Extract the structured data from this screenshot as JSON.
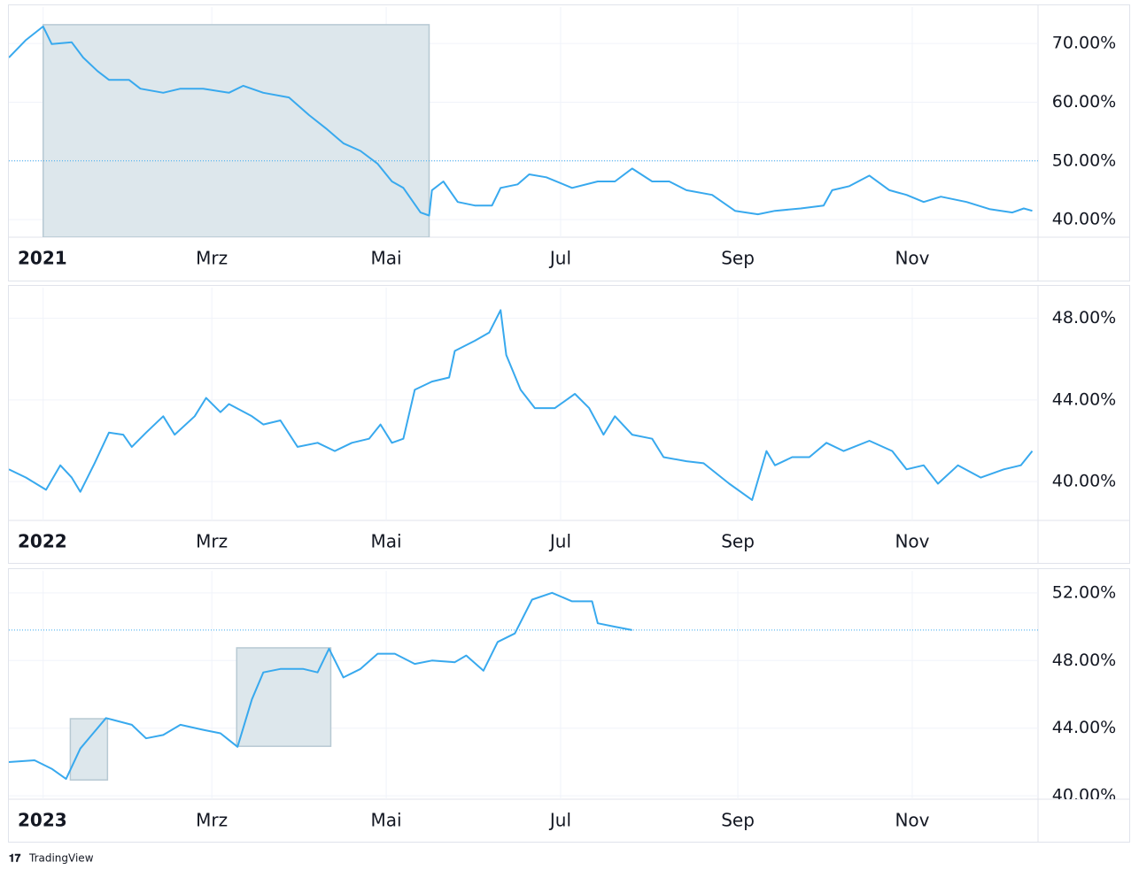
{
  "chart_data": [
    {
      "type": "line",
      "xlim": [
        -12,
        348
      ],
      "ylim": [
        37,
        76.2
      ],
      "xticks": [
        {
          "value": 0,
          "label": "2021"
        },
        {
          "value": 59,
          "label": "Mrz"
        },
        {
          "value": 120,
          "label": "Mai"
        },
        {
          "value": 181,
          "label": "Jul"
        },
        {
          "value": 243,
          "label": "Sep"
        },
        {
          "value": 304,
          "label": "Nov"
        }
      ],
      "yticks": [
        {
          "value": 40,
          "label": "40.00%"
        },
        {
          "value": 50,
          "label": "50.00%"
        },
        {
          "value": 60,
          "label": "60.00%"
        },
        {
          "value": 70,
          "label": "70.00%"
        }
      ],
      "grid": true,
      "reference_line": 50,
      "highlight_color": "#dde7ec",
      "highlights": [
        {
          "x": [
            0,
            135
          ],
          "y": [
            37,
            73.2
          ]
        }
      ],
      "series": [
        {
          "color": "#38a9ee",
          "x": [
            -12,
            -6,
            0,
            3,
            10,
            14,
            19,
            23,
            30,
            34,
            42,
            48,
            56,
            65,
            70,
            77,
            86,
            93,
            99,
            105,
            111,
            117,
            122,
            126,
            132,
            135,
            136,
            140,
            145,
            151,
            157,
            160,
            166,
            170,
            176,
            185,
            194,
            200,
            206,
            213,
            219,
            225,
            234,
            242,
            250,
            256,
            265,
            273,
            276,
            282,
            289,
            296,
            302,
            308,
            314,
            323,
            331,
            339,
            343,
            346
          ],
          "values": [
            67.6,
            70.6,
            72.9,
            69.9,
            70.2,
            67.6,
            65.3,
            63.8,
            63.8,
            62.3,
            61.6,
            62.3,
            62.3,
            61.6,
            62.8,
            61.6,
            60.8,
            57.8,
            55.5,
            53,
            51.7,
            49.5,
            46.5,
            45.4,
            41.2,
            40.7,
            45,
            46.5,
            43,
            42.4,
            42.4,
            45.4,
            46,
            47.7,
            47.2,
            45.4,
            46.5,
            46.5,
            48.7,
            46.5,
            46.5,
            45,
            44.2,
            41.5,
            40.9,
            41.5,
            41.9,
            42.4,
            45,
            45.7,
            47.5,
            45,
            44.2,
            43,
            43.9,
            43,
            41.8,
            41.2,
            41.9,
            41.5
          ]
        }
      ]
    },
    {
      "type": "line",
      "xlim": [
        -12,
        348
      ],
      "ylim": [
        38.1,
        49.5
      ],
      "xticks": [
        {
          "value": 0,
          "label": "2022"
        },
        {
          "value": 59,
          "label": "Mrz"
        },
        {
          "value": 120,
          "label": "Mai"
        },
        {
          "value": 181,
          "label": "Jul"
        },
        {
          "value": 243,
          "label": "Sep"
        },
        {
          "value": 304,
          "label": "Nov"
        }
      ],
      "yticks": [
        {
          "value": 40,
          "label": "40.00%"
        },
        {
          "value": 44,
          "label": "44.00%"
        },
        {
          "value": 48,
          "label": "48.00%"
        }
      ],
      "grid": true,
      "series": [
        {
          "color": "#38a9ee",
          "x": [
            -12,
            -6,
            1,
            6,
            10,
            13,
            18,
            23,
            28,
            31,
            36,
            42,
            46,
            53,
            57,
            62,
            65,
            73,
            77,
            83,
            89,
            96,
            102,
            108,
            114,
            118,
            122,
            126,
            130,
            136,
            142,
            144,
            151,
            156,
            160,
            162,
            167,
            172,
            179,
            186,
            191,
            196,
            200,
            206,
            213,
            217,
            225,
            231,
            240,
            248,
            253,
            256,
            262,
            268,
            274,
            280,
            289,
            297,
            302,
            308,
            313,
            320,
            328,
            336,
            342,
            346
          ],
          "values": [
            40.6,
            40.2,
            39.6,
            40.8,
            40.2,
            39.5,
            40.9,
            42.4,
            42.3,
            41.7,
            42.4,
            43.2,
            42.3,
            43.2,
            44.1,
            43.4,
            43.8,
            43.2,
            42.8,
            43,
            41.7,
            41.9,
            41.5,
            41.9,
            42.1,
            42.8,
            41.9,
            42.1,
            44.5,
            44.9,
            45.1,
            46.4,
            46.9,
            47.3,
            48.4,
            46.2,
            44.5,
            43.6,
            43.6,
            44.3,
            43.6,
            42.3,
            43.2,
            42.3,
            42.1,
            41.2,
            41,
            40.9,
            39.9,
            39.1,
            41.5,
            40.8,
            41.2,
            41.2,
            41.9,
            41.5,
            42,
            41.5,
            40.6,
            40.8,
            39.9,
            40.8,
            40.2,
            40.6,
            40.8,
            41.5
          ]
        }
      ]
    },
    {
      "type": "line",
      "xlim": [
        -12,
        348
      ],
      "ylim": [
        39.8,
        53.3
      ],
      "xticks": [
        {
          "value": 0,
          "label": "2023"
        },
        {
          "value": 59,
          "label": "Mrz"
        },
        {
          "value": 120,
          "label": "Mai"
        },
        {
          "value": 181,
          "label": "Jul"
        },
        {
          "value": 243,
          "label": "Sep"
        },
        {
          "value": 304,
          "label": "Nov"
        }
      ],
      "yticks": [
        {
          "value": 40,
          "label": "40.00%"
        },
        {
          "value": 44,
          "label": "44.00%"
        },
        {
          "value": 48,
          "label": "48.00%"
        },
        {
          "value": 52,
          "label": "52.00%"
        }
      ],
      "grid": true,
      "reference_line": 49.8,
      "highlight_color": "#dde7ec",
      "highlights": [
        {
          "x": [
            9.5,
            22.5
          ],
          "y": [
            40.94,
            44.56
          ]
        },
        {
          "x": [
            67.7,
            100.6
          ],
          "y": [
            42.93,
            48.75
          ]
        }
      ],
      "series": [
        {
          "color": "#38a9ee",
          "x": [
            -12,
            -3,
            3,
            8,
            13,
            17,
            22,
            31,
            36,
            42,
            48,
            56,
            62,
            68,
            73,
            77,
            83,
            91,
            96,
            100,
            105,
            111,
            117,
            123,
            130,
            136,
            144,
            148,
            154,
            159,
            165,
            171,
            178,
            185,
            192,
            194,
            200,
            206
          ],
          "values": [
            42,
            42.1,
            41.6,
            41,
            42.8,
            43.6,
            44.6,
            44.2,
            43.4,
            43.6,
            44.2,
            43.9,
            43.7,
            42.9,
            45.7,
            47.3,
            47.5,
            47.5,
            47.3,
            48.7,
            47,
            47.5,
            48.4,
            48.4,
            47.8,
            48,
            47.9,
            48.3,
            47.4,
            49.1,
            49.6,
            51.6,
            52,
            51.5,
            51.5,
            50.2,
            50,
            49.8
          ]
        }
      ]
    }
  ],
  "branding": "TradingView"
}
